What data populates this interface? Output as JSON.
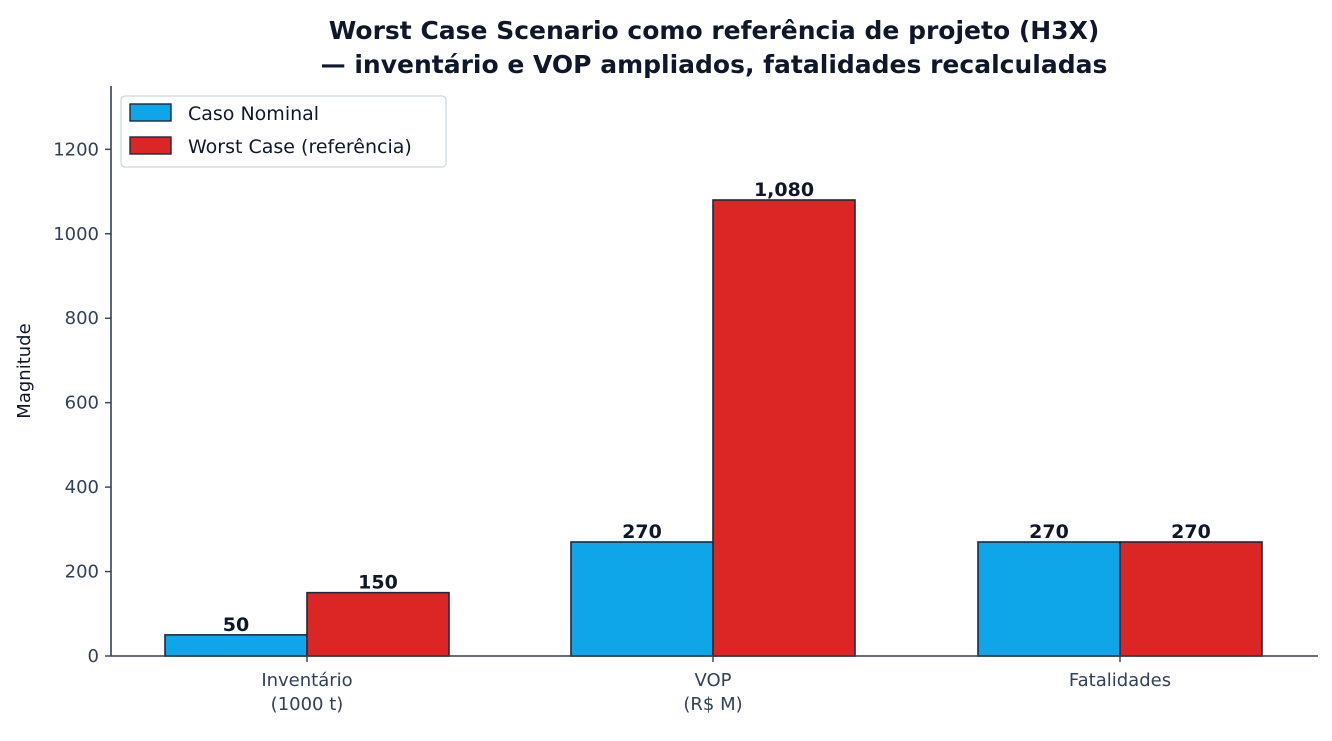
{
  "chart_data": {
    "type": "bar",
    "title_lines": [
      "Worst Case Scenario como referência de projeto (H3X)",
      "— inventário e VOP ampliados, fatalidades recalculadas"
    ],
    "xlabel": "",
    "ylabel": "Magnitude",
    "categories": [
      [
        "Inventário",
        "(1000 t)"
      ],
      [
        "VOP",
        "(R$ M)"
      ],
      [
        "Fatalidades"
      ]
    ],
    "series": [
      {
        "name": "Caso Nominal",
        "color": "#0ea5e9",
        "values": [
          50,
          270,
          270
        ],
        "labels": [
          "50",
          "270",
          "270"
        ]
      },
      {
        "name": "Worst Case (referência)",
        "color": "#dc2626",
        "values": [
          150,
          1080,
          270
        ],
        "labels": [
          "150",
          "1,080",
          "270"
        ]
      }
    ],
    "ylim": [
      0,
      1350
    ],
    "yticks": [
      0,
      200,
      400,
      600,
      800,
      1000,
      1200
    ],
    "ytick_labels": [
      "0",
      "200",
      "400",
      "600",
      "800",
      "1000",
      "1200"
    ],
    "grid": false,
    "legend_position": "top-left",
    "axis_color": "#334155",
    "bar_edge_color": "#1e293b"
  }
}
